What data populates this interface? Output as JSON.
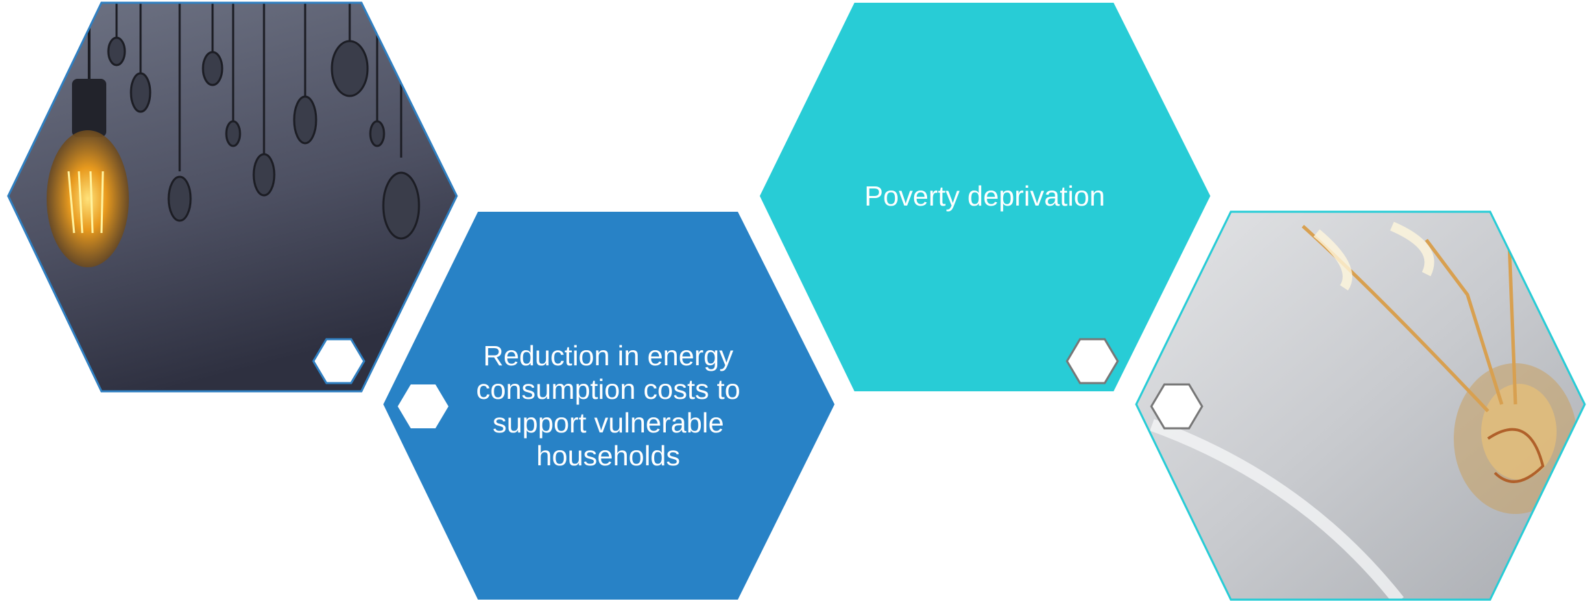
{
  "cards": [
    {
      "lines": [
        "Reduction in energy",
        "consumption costs to",
        "support vulnerable",
        "households"
      ]
    },
    {
      "lines": [
        "Poverty deprivation"
      ]
    }
  ]
}
